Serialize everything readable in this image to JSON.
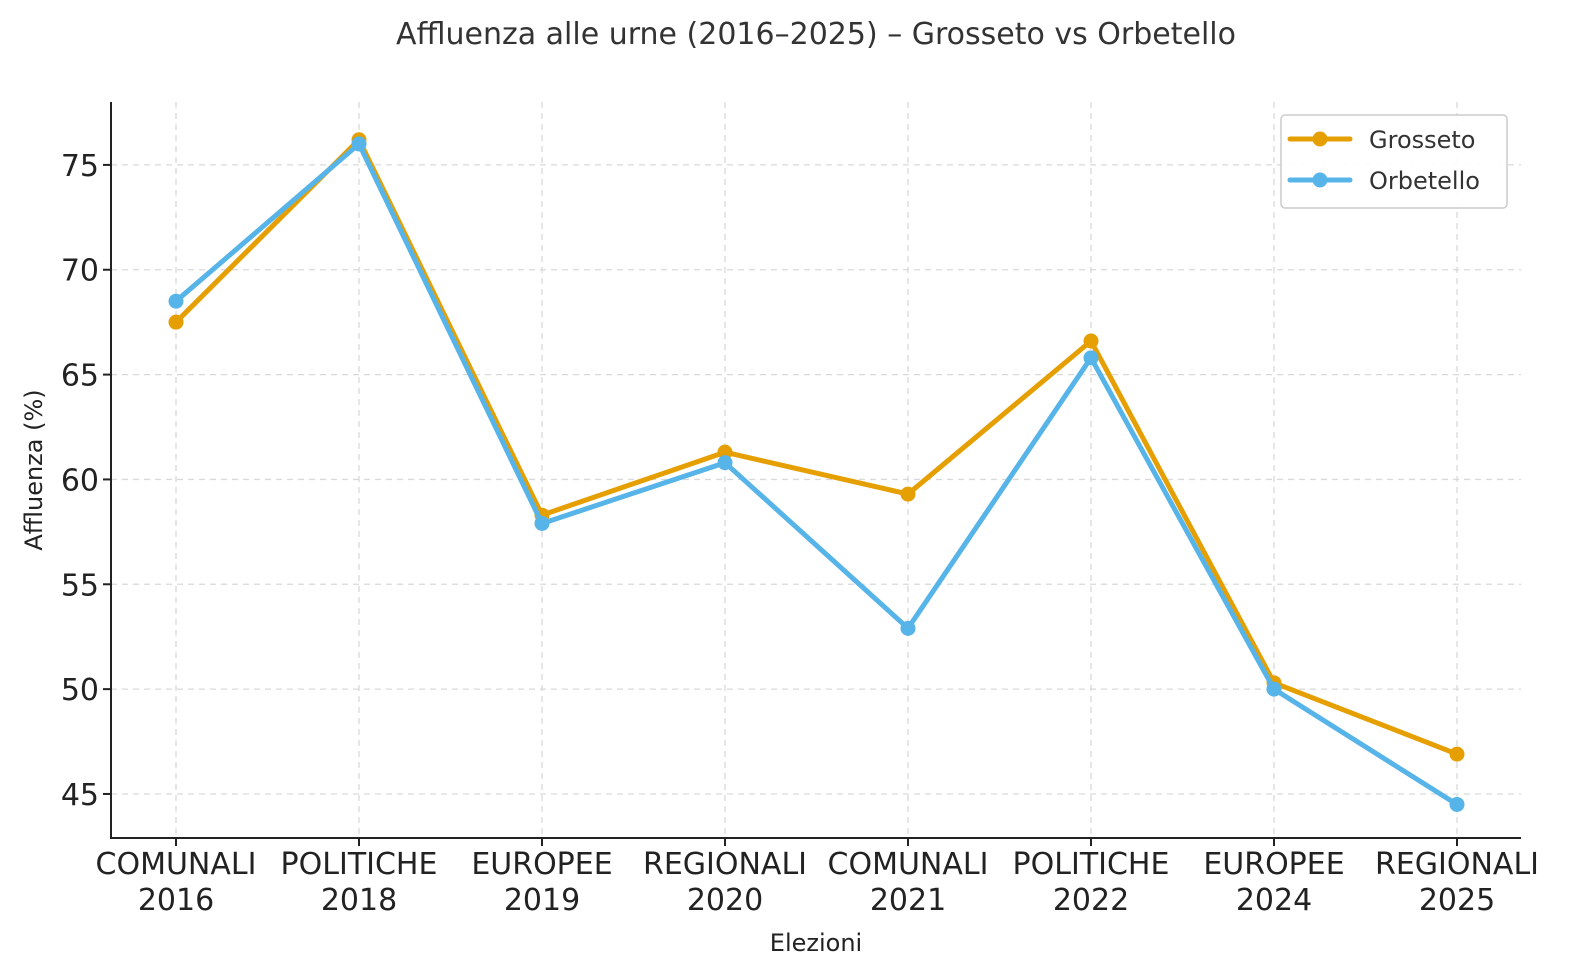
{
  "chart_data": {
    "type": "line",
    "title": "Affluenza alle urne (2016–2025) – Grosseto vs Orbetello",
    "xlabel": "Elezioni",
    "ylabel": "Affluenza (%)",
    "categories": [
      [
        "COMUNALI",
        "2016"
      ],
      [
        "POLITICHE",
        "2018"
      ],
      [
        "EUROPEE",
        "2019"
      ],
      [
        "REGIONALI",
        "2020"
      ],
      [
        "COMUNALI",
        "2021"
      ],
      [
        "POLITICHE",
        "2022"
      ],
      [
        "EUROPEE",
        "2024"
      ],
      [
        "REGIONALI",
        "2025"
      ]
    ],
    "ylim": [
      42.9,
      78.0
    ],
    "yticks": [
      45,
      50,
      55,
      60,
      65,
      70,
      75
    ],
    "grid": true,
    "legend_position": "top-right",
    "series": [
      {
        "name": "Grosseto",
        "color": "#E69F00",
        "values": [
          67.5,
          76.2,
          58.3,
          61.3,
          59.3,
          66.6,
          50.3,
          46.9
        ]
      },
      {
        "name": "Orbetello",
        "color": "#56B4E9",
        "values": [
          68.5,
          76.0,
          57.9,
          60.8,
          52.9,
          65.8,
          50.0,
          44.5
        ]
      }
    ]
  }
}
